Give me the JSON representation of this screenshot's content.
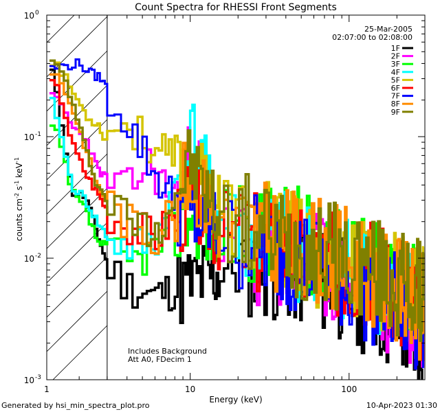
{
  "chart_data": {
    "type": "line",
    "title": "Count Spectra for RHESSI Front Segments",
    "xlabel": "Energy (keV)",
    "ylabel": "counts cm",
    "ylabel_sup1": "-2",
    "ylabel_mid": " s",
    "ylabel_sup2": "-1",
    "ylabel_end": " keV",
    "ylabel_sup3": "-1",
    "xscale": "log",
    "yscale": "log",
    "xlim": [
      1.25,
      300
    ],
    "ylim": [
      0.001,
      1.0
    ],
    "xticks": [
      {
        "value": 1,
        "label": "1"
      },
      {
        "value": 10,
        "label": "10"
      },
      {
        "value": 100,
        "label": "100"
      }
    ],
    "yticks": [
      {
        "value": 1,
        "label": "10",
        "exp": "0"
      },
      {
        "value": 0.1,
        "label": "10",
        "exp": "-1"
      },
      {
        "value": 0.01,
        "label": "10",
        "exp": "-2"
      },
      {
        "value": 0.001,
        "label": "10",
        "exp": "-3"
      }
    ],
    "attenuator_region": {
      "xmin": 1.25,
      "xmax": 3.0
    },
    "date_text": "25-Mar-2005",
    "time_range_text": "02:07:00 to 02:08:00",
    "annotation_line1": "Includes Background",
    "annotation_line2": "Att A0, FDecim 1",
    "footer_left": "Generated by hsi_min_spectra_plot.pro",
    "footer_right": "10-Apr-2023 01:30",
    "series": [
      {
        "name": "1F",
        "color": "#000000",
        "seed": 11,
        "anchors": [
          [
            1.4,
            0.33
          ],
          [
            1.6,
            0.1
          ],
          [
            1.8,
            0.035
          ],
          [
            2.2,
            0.032
          ],
          [
            2.6,
            0.016
          ],
          [
            3.0,
            0.009
          ],
          [
            4.0,
            0.006
          ],
          [
            6.0,
            0.005
          ],
          [
            10,
            0.006
          ],
          [
            20,
            0.009
          ],
          [
            40,
            0.008
          ],
          [
            80,
            0.006
          ],
          [
            150,
            0.004
          ],
          [
            280,
            0.002
          ]
        ]
      },
      {
        "name": "2F",
        "color": "#ff00ff",
        "seed": 23,
        "anchors": [
          [
            1.4,
            0.21
          ],
          [
            1.6,
            0.17
          ],
          [
            1.8,
            0.12
          ],
          [
            2.2,
            0.1
          ],
          [
            2.6,
            0.055
          ],
          [
            3.0,
            0.045
          ],
          [
            4.0,
            0.035
          ],
          [
            5.5,
            0.06
          ],
          [
            8.0,
            0.03
          ],
          [
            10.5,
            0.07
          ],
          [
            15,
            0.015
          ],
          [
            25,
            0.01
          ],
          [
            50,
            0.009
          ],
          [
            100,
            0.007
          ],
          [
            200,
            0.004
          ],
          [
            280,
            0.003
          ]
        ]
      },
      {
        "name": "3F",
        "color": "#00ff00",
        "seed": 37,
        "anchors": [
          [
            1.4,
            0.12
          ],
          [
            1.6,
            0.07
          ],
          [
            1.8,
            0.035
          ],
          [
            2.2,
            0.025
          ],
          [
            2.6,
            0.014
          ],
          [
            3.0,
            0.012
          ],
          [
            4.0,
            0.009
          ],
          [
            6.0,
            0.012
          ],
          [
            10,
            0.025
          ],
          [
            15,
            0.016
          ],
          [
            25,
            0.017
          ],
          [
            50,
            0.014
          ],
          [
            100,
            0.011
          ],
          [
            200,
            0.007
          ],
          [
            280,
            0.004
          ]
        ]
      },
      {
        "name": "4F",
        "color": "#00ffff",
        "seed": 41,
        "anchors": [
          [
            1.4,
            0.19
          ],
          [
            1.6,
            0.08
          ],
          [
            1.8,
            0.04
          ],
          [
            2.2,
            0.03
          ],
          [
            2.6,
            0.02
          ],
          [
            3.0,
            0.015
          ],
          [
            4.0,
            0.012
          ],
          [
            6.0,
            0.013
          ],
          [
            10.5,
            0.1
          ],
          [
            15,
            0.02
          ],
          [
            30,
            0.014
          ],
          [
            60,
            0.011
          ],
          [
            120,
            0.008
          ],
          [
            280,
            0.004
          ]
        ]
      },
      {
        "name": "5F",
        "color": "#d4c400",
        "seed": 53,
        "anchors": [
          [
            1.4,
            0.42
          ],
          [
            1.7,
            0.28
          ],
          [
            2.0,
            0.19
          ],
          [
            2.3,
            0.14
          ],
          [
            2.6,
            0.13
          ],
          [
            3.0,
            0.09
          ],
          [
            3.5,
            0.14
          ],
          [
            4.5,
            0.11
          ],
          [
            6.0,
            0.08
          ],
          [
            8.0,
            0.06
          ],
          [
            10,
            0.05
          ],
          [
            13,
            0.035
          ],
          [
            20,
            0.02
          ],
          [
            40,
            0.013
          ],
          [
            80,
            0.01
          ],
          [
            150,
            0.007
          ],
          [
            280,
            0.005
          ]
        ]
      },
      {
        "name": "6F",
        "color": "#ff0000",
        "seed": 67,
        "anchors": [
          [
            1.4,
            0.28
          ],
          [
            1.6,
            0.18
          ],
          [
            1.8,
            0.09
          ],
          [
            2.2,
            0.05
          ],
          [
            2.6,
            0.035
          ],
          [
            3.0,
            0.025
          ],
          [
            4.0,
            0.02
          ],
          [
            6.0,
            0.015
          ],
          [
            10,
            0.03
          ],
          [
            15,
            0.018
          ],
          [
            30,
            0.013
          ],
          [
            60,
            0.01
          ],
          [
            120,
            0.008
          ],
          [
            280,
            0.004
          ]
        ]
      },
      {
        "name": "7F",
        "color": "#0000ff",
        "seed": 79,
        "anchors": [
          [
            1.3,
            0.36
          ],
          [
            1.6,
            0.38
          ],
          [
            2.0,
            0.4
          ],
          [
            2.4,
            0.33
          ],
          [
            2.8,
            0.3
          ],
          [
            3.2,
            0.2
          ],
          [
            4.0,
            0.14
          ],
          [
            5.0,
            0.08
          ],
          [
            6.0,
            0.05
          ],
          [
            8.0,
            0.03
          ],
          [
            10,
            0.022
          ],
          [
            15,
            0.017
          ],
          [
            30,
            0.012
          ],
          [
            60,
            0.009
          ],
          [
            120,
            0.006
          ],
          [
            280,
            0.003
          ]
        ]
      },
      {
        "name": "8F",
        "color": "#ff8c00",
        "seed": 83,
        "anchors": [
          [
            1.4,
            0.35
          ],
          [
            1.6,
            0.25
          ],
          [
            1.8,
            0.18
          ],
          [
            2.2,
            0.08
          ],
          [
            2.6,
            0.04
          ],
          [
            3.0,
            0.03
          ],
          [
            4.0,
            0.02
          ],
          [
            6.0,
            0.015
          ],
          [
            10,
            0.05
          ],
          [
            15,
            0.02
          ],
          [
            30,
            0.015
          ],
          [
            60,
            0.012
          ],
          [
            120,
            0.009
          ],
          [
            280,
            0.004
          ]
        ]
      },
      {
        "name": "9F",
        "color": "#808000",
        "seed": 97,
        "anchors": [
          [
            1.4,
            0.4
          ],
          [
            1.6,
            0.32
          ],
          [
            1.8,
            0.2
          ],
          [
            2.2,
            0.08
          ],
          [
            2.6,
            0.04
          ],
          [
            3.0,
            0.03
          ],
          [
            4.0,
            0.022
          ],
          [
            6.0,
            0.016
          ],
          [
            10,
            0.06
          ],
          [
            15,
            0.022
          ],
          [
            30,
            0.016
          ],
          [
            60,
            0.012
          ],
          [
            120,
            0.009
          ],
          [
            280,
            0.005
          ]
        ]
      }
    ]
  }
}
